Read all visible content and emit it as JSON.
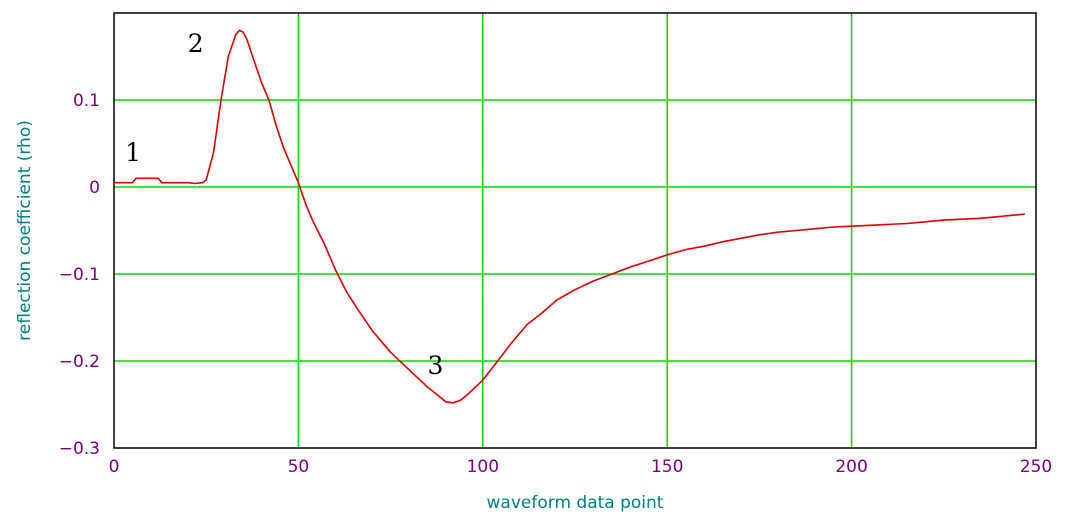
{
  "chart_data": {
    "type": "line",
    "title": "",
    "xlabel": "waveform data point",
    "ylabel": "reflection coefficient (rho)",
    "xlim": [
      0,
      250
    ],
    "ylim": [
      -0.3,
      0.2
    ],
    "x_ticks": [
      0,
      50,
      100,
      150,
      200,
      250
    ],
    "y_ticks": [
      -0.3,
      -0.2,
      -0.1,
      0,
      0.1
    ],
    "x_tick_labels": [
      "0",
      "50",
      "100",
      "150",
      "200",
      "250"
    ],
    "y_tick_labels": [
      "−0.3",
      "−0.2",
      "−0.1",
      "0",
      "0.1"
    ],
    "grid": true,
    "grid_color": "#00dd00",
    "series": [
      {
        "color": "#e00000",
        "x": [
          0,
          5,
          6,
          12,
          13,
          20,
          22,
          24,
          25,
          27,
          29,
          31,
          33,
          34,
          35,
          36,
          38,
          40,
          42,
          44,
          46,
          48,
          50,
          52,
          54,
          57,
          60,
          63,
          66,
          70,
          75,
          80,
          85,
          88,
          90,
          92,
          94,
          96,
          98,
          100,
          104,
          108,
          112,
          116,
          120,
          125,
          130,
          135,
          140,
          145,
          150,
          155,
          160,
          165,
          170,
          175,
          180,
          185,
          190,
          195,
          200,
          205,
          210,
          215,
          220,
          225,
          230,
          235,
          240,
          245,
          247
        ],
        "values": [
          0.005,
          0.005,
          0.01,
          0.01,
          0.005,
          0.005,
          0.004,
          0.005,
          0.008,
          0.04,
          0.1,
          0.15,
          0.175,
          0.18,
          0.178,
          0.17,
          0.145,
          0.12,
          0.1,
          0.07,
          0.045,
          0.025,
          0.005,
          -0.02,
          -0.04,
          -0.065,
          -0.095,
          -0.12,
          -0.14,
          -0.165,
          -0.19,
          -0.21,
          -0.23,
          -0.24,
          -0.247,
          -0.248,
          -0.245,
          -0.238,
          -0.23,
          -0.222,
          -0.2,
          -0.178,
          -0.158,
          -0.145,
          -0.13,
          -0.118,
          -0.108,
          -0.1,
          -0.092,
          -0.085,
          -0.078,
          -0.072,
          -0.068,
          -0.063,
          -0.059,
          -0.055,
          -0.052,
          -0.05,
          -0.048,
          -0.046,
          -0.045,
          -0.044,
          -0.043,
          -0.042,
          -0.04,
          -0.038,
          -0.037,
          -0.036,
          -0.034,
          -0.032,
          -0.031
        ]
      }
    ],
    "annotations": [
      {
        "text": "1",
        "x": 3,
        "y": 0.03
      },
      {
        "text": "2",
        "x": 20,
        "y": 0.155
      },
      {
        "text": "3",
        "x": 85,
        "y": -0.215
      }
    ]
  }
}
